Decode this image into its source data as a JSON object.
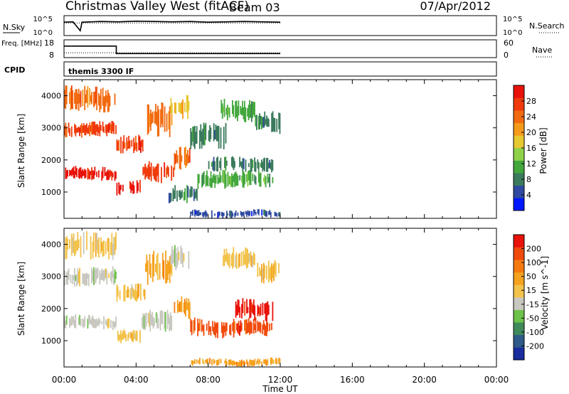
{
  "header": {
    "station": "Christmas Valley West (fitACF)",
    "beam": "Beam 03",
    "date": "07/Apr/2012"
  },
  "chart_data": [
    {
      "type": "line",
      "panel": "nsky",
      "ylabel": "N.Sky",
      "ylabel_right": "N.Search",
      "yticks": [
        "10^5",
        "10^0"
      ],
      "yticks_right": [
        "10^5",
        "10^0"
      ],
      "xlim": [
        0,
        24
      ],
      "series": [
        {
          "name": "N.Sky",
          "style": "solid",
          "x": [
            0,
            0.5,
            0.9,
            1.0,
            2,
            3,
            4,
            5,
            6,
            7,
            8,
            9,
            10,
            11,
            12
          ],
          "y": [
            3.5,
            3.6,
            1.0,
            3.5,
            3.7,
            3.6,
            3.8,
            3.7,
            3.6,
            3.7,
            3.5,
            3.6,
            3.7,
            3.6,
            3.5
          ]
        },
        {
          "name": "N.Search",
          "style": "dotted",
          "x": [
            0,
            12
          ],
          "y": [
            3.3,
            3.3
          ]
        }
      ]
    },
    {
      "type": "line",
      "panel": "freq",
      "ylabel": "Freq. [MHz]",
      "ylabel_right": "Nave",
      "yticks": [
        "18",
        "8"
      ],
      "yticks_right": [
        "60",
        "0"
      ],
      "xlim": [
        0,
        24
      ],
      "series": [
        {
          "name": "Freq",
          "style": "solid",
          "x": [
            0,
            2.9,
            2.9,
            12
          ],
          "y": [
            16,
            16,
            10.5,
            10.5
          ]
        },
        {
          "name": "Nave",
          "style": "dotted",
          "x": [
            0,
            12
          ],
          "y": [
            18,
            18
          ]
        }
      ]
    },
    {
      "type": "table",
      "panel": "cpid",
      "label": "CPID",
      "text": "themis 3300 IF"
    },
    {
      "type": "heatmap",
      "panel": "power",
      "ylabel": "Slant Range [km]",
      "yticks": [
        1000,
        2000,
        3000,
        4000
      ],
      "ylim": [
        180,
        4500
      ],
      "xlim": [
        0,
        24
      ],
      "colorbar": {
        "label": "Power [dB]",
        "ticks": [
          "28",
          "24",
          "20",
          "16",
          "12",
          "8",
          "4"
        ],
        "colors": [
          "#0018ff",
          "#2f4aa0",
          "#3b7a5c",
          "#43a73c",
          "#8fd24a",
          "#e6c830",
          "#f59a1a",
          "#f26a10",
          "#f03a0c",
          "#e8120a"
        ]
      },
      "bands": [
        {
          "x0": 0.0,
          "x1": 2.9,
          "y0": 1350,
          "y1": 1800,
          "level": 9
        },
        {
          "x0": 2.9,
          "x1": 4.3,
          "y0": 900,
          "y1": 1350,
          "level": 9
        },
        {
          "x0": 4.3,
          "x1": 6.1,
          "y0": 1300,
          "y1": 2000,
          "level": 8
        },
        {
          "x0": 6.1,
          "x1": 7.0,
          "y0": 1650,
          "y1": 2400,
          "level": 7
        },
        {
          "x0": 0.0,
          "x1": 2.9,
          "y0": 2700,
          "y1": 3200,
          "level": 8
        },
        {
          "x0": 2.9,
          "x1": 4.5,
          "y0": 2200,
          "y1": 2800,
          "level": 8
        },
        {
          "x0": 4.5,
          "x1": 6.0,
          "y0": 2700,
          "y1": 3800,
          "level": 7
        },
        {
          "x0": 0.0,
          "x1": 2.9,
          "y0": 3500,
          "y1": 4300,
          "level": 7
        },
        {
          "x0": 5.9,
          "x1": 7.0,
          "y0": 3200,
          "y1": 4000,
          "level": 5
        },
        {
          "x0": 5.8,
          "x1": 7.4,
          "y0": 600,
          "y1": 1200,
          "level": 2
        },
        {
          "x0": 7.4,
          "x1": 11.6,
          "y0": 1100,
          "y1": 1700,
          "level": 3
        },
        {
          "x0": 8.0,
          "x1": 11.6,
          "y0": 1600,
          "y1": 2100,
          "level": 2
        },
        {
          "x0": 7.0,
          "x1": 9.0,
          "y0": 2300,
          "y1": 3200,
          "level": 2
        },
        {
          "x0": 8.7,
          "x1": 10.6,
          "y0": 3200,
          "y1": 3900,
          "level": 3
        },
        {
          "x0": 10.6,
          "x1": 12.0,
          "y0": 2800,
          "y1": 3500,
          "level": 2
        },
        {
          "x0": 7.0,
          "x1": 12.0,
          "y0": 200,
          "y1": 450,
          "level": 1
        }
      ]
    },
    {
      "type": "heatmap",
      "panel": "velocity",
      "ylabel": "Slant Range [km]",
      "yticks": [
        1000,
        2000,
        3000,
        4000
      ],
      "ylim": [
        180,
        4500
      ],
      "xlim": [
        0,
        24
      ],
      "xticks": [
        "00:00",
        "04:00",
        "08:00",
        "12:00",
        "16:00",
        "20:00",
        "00:00"
      ],
      "xlabel": "Time UT",
      "colorbar": {
        "label": "Velocity [m s^-1]",
        "ticks": [
          "200",
          "100",
          "50",
          "15",
          "-15",
          "-50",
          "-100",
          "-200"
        ],
        "colors": [
          "#1a2c9e",
          "#2f5a8a",
          "#3f8a5a",
          "#6cc24a",
          "#c8c8c0",
          "#f2c24a",
          "#f5a21e",
          "#f57a10",
          "#f04a0c",
          "#e8120a"
        ]
      },
      "bands": [
        {
          "x0": 0.0,
          "x1": 2.9,
          "y0": 1350,
          "y1": 1800,
          "level": 4
        },
        {
          "x0": 2.9,
          "x1": 4.3,
          "y0": 900,
          "y1": 1350,
          "level": 5
        },
        {
          "x0": 4.3,
          "x1": 6.1,
          "y0": 1300,
          "y1": 2000,
          "level": 4
        },
        {
          "x0": 6.1,
          "x1": 7.0,
          "y0": 1650,
          "y1": 2400,
          "level": 6
        },
        {
          "x0": 0.0,
          "x1": 2.9,
          "y0": 2700,
          "y1": 3300,
          "level": 4
        },
        {
          "x0": 2.9,
          "x1": 4.5,
          "y0": 2200,
          "y1": 2800,
          "level": 5
        },
        {
          "x0": 4.5,
          "x1": 6.0,
          "y0": 2700,
          "y1": 3800,
          "level": 6
        },
        {
          "x0": 0.0,
          "x1": 2.9,
          "y0": 3500,
          "y1": 4400,
          "level": 5
        },
        {
          "x0": 5.9,
          "x1": 7.0,
          "y0": 3200,
          "y1": 4000,
          "level": 4
        },
        {
          "x0": 7.0,
          "x1": 11.6,
          "y0": 1100,
          "y1": 1700,
          "level": 8
        },
        {
          "x0": 9.5,
          "x1": 11.6,
          "y0": 1600,
          "y1": 2300,
          "level": 9
        },
        {
          "x0": 8.7,
          "x1": 10.6,
          "y0": 3200,
          "y1": 3900,
          "level": 5
        },
        {
          "x0": 10.6,
          "x1": 12.0,
          "y0": 2800,
          "y1": 3500,
          "level": 5
        },
        {
          "x0": 7.0,
          "x1": 12.0,
          "y0": 200,
          "y1": 450,
          "level": 6
        }
      ]
    }
  ]
}
